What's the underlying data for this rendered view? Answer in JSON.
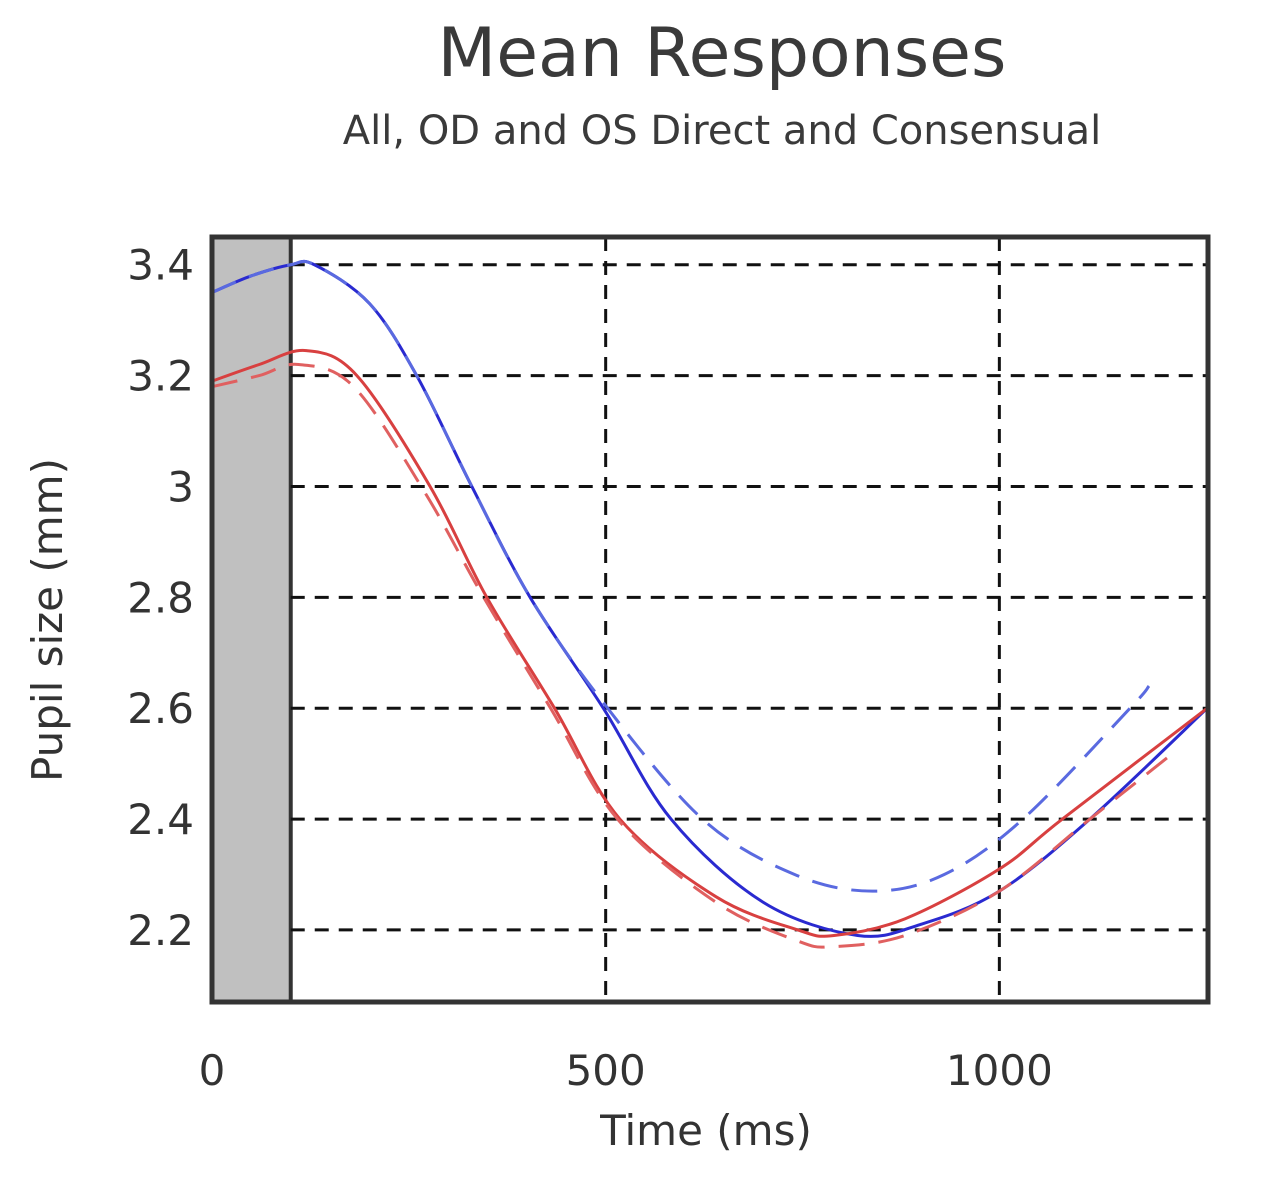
{
  "chart_data": {
    "type": "line",
    "title": "Mean Responses",
    "subtitle": "All, OD and OS Direct and Consensual",
    "xlabel": "Time (ms)",
    "ylabel": "Pupil size (mm)",
    "xlim": [
      0,
      1265
    ],
    "ylim": [
      2.07,
      3.45
    ],
    "xticks": [
      0,
      500,
      1000
    ],
    "yticks": [
      2.2,
      2.4,
      2.6,
      2.8,
      3,
      3.2,
      3.4
    ],
    "xtick_labels": [
      "0",
      "500",
      "1000"
    ],
    "ytick_labels": [
      "2.2",
      "2.4",
      "2.6",
      "2.8",
      "3",
      "3.2",
      "3.4"
    ],
    "grid": true,
    "shaded_interval": {
      "x": [
        0,
        100
      ],
      "color": "#c0c0c0"
    },
    "series": [
      {
        "color": "#2a2ad0",
        "style": "solid",
        "x": [
          0,
          50,
          100,
          130,
          200,
          260,
          330,
          404,
          497,
          583,
          700,
          820,
          900,
          1000,
          1115,
          1264
        ],
        "y": [
          3.35,
          3.38,
          3.4,
          3.4,
          3.33,
          3.2,
          3.0,
          2.8,
          2.6,
          2.4,
          2.25,
          2.19,
          2.21,
          2.27,
          2.4,
          2.6
        ]
      },
      {
        "color": "#5a6ae0",
        "style": "dashed",
        "x": [
          0,
          50,
          100,
          130,
          200,
          260,
          330,
          404,
          497,
          623,
          740,
          839,
          930,
          1030,
          1166,
          1190
        ],
        "y": [
          3.35,
          3.38,
          3.4,
          3.4,
          3.33,
          3.2,
          3.0,
          2.8,
          2.61,
          2.4,
          2.3,
          2.27,
          2.3,
          2.4,
          2.6,
          2.64
        ]
      },
      {
        "color": "#d84040",
        "style": "solid",
        "x": [
          0,
          60,
          120,
          184,
          277,
          349,
          435,
          518,
          640,
          744,
          790,
          880,
          1000,
          1080,
          1264
        ],
        "y": [
          3.19,
          3.22,
          3.245,
          3.2,
          3.0,
          2.8,
          2.6,
          2.4,
          2.26,
          2.2,
          2.19,
          2.22,
          2.31,
          2.4,
          2.6
        ]
      },
      {
        "color": "#e06060",
        "style": "dashed",
        "x": [
          0,
          60,
          110,
          180,
          270,
          345,
          430,
          515,
          640,
          744,
          790,
          880,
          1000,
          1115,
          1226
        ],
        "y": [
          3.18,
          3.2,
          3.22,
          3.18,
          2.99,
          2.8,
          2.6,
          2.4,
          2.25,
          2.18,
          2.17,
          2.19,
          2.27,
          2.4,
          2.525
        ]
      }
    ]
  }
}
